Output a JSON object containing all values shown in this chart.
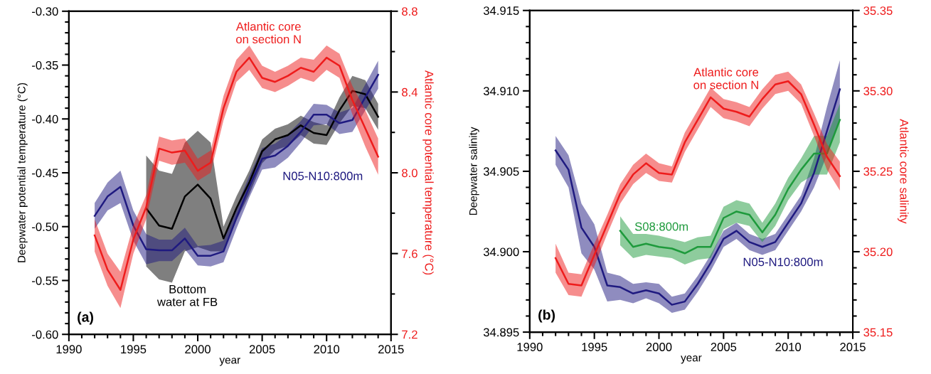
{
  "chart_data": [
    {
      "type": "line",
      "xlabel": "year",
      "ylabel": "Deepwater potential temperature (°C)",
      "y2label": "Atlantic core potential temperature (°C)",
      "xlim": [
        1990,
        2015
      ],
      "xticks": [
        1990,
        {
          "value": 1991,
          "label": null
        },
        {
          "value": 1992,
          "label": null
        },
        {
          "value": 1993,
          "label": null
        },
        {
          "value": 1994,
          "label": null
        },
        1995,
        {
          "value": 1996,
          "label": null
        },
        {
          "value": 1997,
          "label": null
        },
        {
          "value": 1998,
          "label": null
        },
        {
          "value": 1999,
          "label": null
        },
        2000,
        {
          "value": 2001,
          "label": null
        },
        {
          "value": 2002,
          "label": null
        },
        {
          "value": 2003,
          "label": null
        },
        {
          "value": 2004,
          "label": null
        },
        2005,
        {
          "value": 2006,
          "label": null
        },
        {
          "value": 2007,
          "label": null
        },
        {
          "value": 2008,
          "label": null
        },
        {
          "value": 2009,
          "label": null
        },
        2010,
        {
          "value": 2011,
          "label": null
        },
        {
          "value": 2012,
          "label": null
        },
        {
          "value": 2013,
          "label": null
        },
        {
          "value": 2014,
          "label": null
        },
        2015
      ],
      "ylim": [
        -0.6,
        -0.3
      ],
      "yticks": [
        {
          "value": -0.6,
          "label": "-0.60"
        },
        {
          "value": -0.59,
          "label": null
        },
        {
          "value": -0.58,
          "label": null
        },
        {
          "value": -0.57,
          "label": null
        },
        {
          "value": -0.56,
          "label": null
        },
        {
          "value": -0.55,
          "label": "-0.55"
        },
        {
          "value": -0.54,
          "label": null
        },
        {
          "value": -0.53,
          "label": null
        },
        {
          "value": -0.52,
          "label": null
        },
        {
          "value": -0.51,
          "label": null
        },
        {
          "value": -0.5,
          "label": "-0.50"
        },
        {
          "value": -0.49,
          "label": null
        },
        {
          "value": -0.48,
          "label": null
        },
        {
          "value": -0.47,
          "label": null
        },
        {
          "value": -0.46,
          "label": null
        },
        {
          "value": -0.45,
          "label": "-0.45"
        },
        {
          "value": -0.44,
          "label": null
        },
        {
          "value": -0.43,
          "label": null
        },
        {
          "value": -0.42,
          "label": null
        },
        {
          "value": -0.41,
          "label": null
        },
        {
          "value": -0.4,
          "label": "-0.40"
        },
        {
          "value": -0.39,
          "label": null
        },
        {
          "value": -0.38,
          "label": null
        },
        {
          "value": -0.37,
          "label": null
        },
        {
          "value": -0.36,
          "label": null
        },
        {
          "value": -0.35,
          "label": "-0.35"
        },
        {
          "value": -0.34,
          "label": null
        },
        {
          "value": -0.33,
          "label": null
        },
        {
          "value": -0.32,
          "label": null
        },
        {
          "value": -0.31,
          "label": null
        },
        {
          "value": -0.3,
          "label": "-0.30"
        }
      ],
      "y2lim": [
        7.2,
        8.8
      ],
      "y2ticks": [
        7.2,
        {
          "value": 7.4,
          "label": null
        },
        7.6,
        {
          "value": 7.8,
          "label": null
        },
        {
          "value": 8.0,
          "label": "8.0"
        },
        {
          "value": 8.2,
          "label": null
        },
        8.4,
        {
          "value": 8.6,
          "label": null
        },
        8.8
      ],
      "series": [
        {
          "name": "Bottom\nwater at FB",
          "color": "#000000",
          "x": [
            1996,
            1997,
            1998,
            1999,
            2000,
            2001,
            2002,
            2003,
            2004,
            2005,
            2006,
            2007,
            2008,
            2009,
            2010,
            2011,
            2012,
            2013,
            2014
          ],
          "values": [
            -0.483,
            -0.499,
            -0.502,
            -0.472,
            -0.461,
            -0.474,
            -0.511,
            -0.483,
            -0.459,
            -0.43,
            -0.419,
            -0.415,
            -0.406,
            -0.413,
            -0.415,
            -0.392,
            -0.374,
            -0.377,
            -0.398
          ],
          "lower": [
            -0.537,
            -0.549,
            -0.552,
            -0.523,
            -0.519,
            -0.523,
            -0.523,
            -0.494,
            -0.47,
            -0.441,
            -0.429,
            -0.425,
            -0.415,
            -0.423,
            -0.424,
            -0.404,
            -0.388,
            -0.39,
            -0.41
          ],
          "upper": [
            -0.434,
            -0.448,
            -0.451,
            -0.422,
            -0.411,
            -0.422,
            -0.5,
            -0.472,
            -0.448,
            -0.419,
            -0.409,
            -0.405,
            -0.397,
            -0.403,
            -0.406,
            -0.38,
            -0.36,
            -0.364,
            -0.386
          ]
        },
        {
          "name": "N05-N10:800m",
          "color": "#1f1a80",
          "x": [
            1992,
            1993,
            1994,
            1995,
            1996,
            1997,
            1998,
            1999,
            2000,
            2001,
            2002,
            2003,
            2004,
            2005,
            2006,
            2007,
            2008,
            2009,
            2010,
            2011,
            2012,
            2013,
            2014
          ],
          "values": [
            -0.49,
            -0.472,
            -0.463,
            -0.499,
            -0.521,
            -0.522,
            -0.522,
            -0.511,
            -0.527,
            -0.527,
            -0.523,
            -0.492,
            -0.463,
            -0.437,
            -0.434,
            -0.425,
            -0.412,
            -0.396,
            -0.396,
            -0.404,
            -0.401,
            -0.38,
            -0.359
          ],
          "lower": [
            -0.502,
            -0.485,
            -0.478,
            -0.513,
            -0.535,
            -0.532,
            -0.532,
            -0.521,
            -0.536,
            -0.537,
            -0.533,
            -0.502,
            -0.473,
            -0.447,
            -0.445,
            -0.436,
            -0.422,
            -0.406,
            -0.405,
            -0.414,
            -0.412,
            -0.392,
            -0.372
          ],
          "upper": [
            -0.478,
            -0.459,
            -0.448,
            -0.485,
            -0.507,
            -0.512,
            -0.512,
            -0.501,
            -0.518,
            -0.517,
            -0.513,
            -0.482,
            -0.453,
            -0.427,
            -0.423,
            -0.414,
            -0.402,
            -0.386,
            -0.387,
            -0.394,
            -0.39,
            -0.368,
            -0.346
          ]
        },
        {
          "name": "Atlantic core\non section N",
          "color": "#ee1c1c",
          "axis": "y2",
          "x": [
            1992,
            1993,
            1994,
            1995,
            1996,
            1997,
            1998,
            1999,
            2000,
            2001,
            2002,
            2003,
            2004,
            2005,
            2006,
            2007,
            2008,
            2009,
            2010,
            2011,
            2012,
            2013,
            2014
          ],
          "values": [
            7.69,
            7.52,
            7.42,
            7.67,
            7.83,
            8.12,
            8.1,
            8.11,
            8.01,
            8.05,
            8.32,
            8.5,
            8.57,
            8.47,
            8.45,
            8.48,
            8.52,
            8.5,
            8.57,
            8.53,
            8.36,
            8.22,
            8.08
          ],
          "lower": [
            7.61,
            7.44,
            7.33,
            7.6,
            7.77,
            8.06,
            8.04,
            8.05,
            7.96,
            8.0,
            8.26,
            8.45,
            8.51,
            8.42,
            8.4,
            8.43,
            8.47,
            8.45,
            8.51,
            8.47,
            8.29,
            8.13,
            7.99
          ],
          "upper": [
            7.77,
            7.6,
            7.51,
            7.74,
            7.89,
            8.18,
            8.16,
            8.17,
            8.07,
            8.11,
            8.38,
            8.56,
            8.63,
            8.53,
            8.5,
            8.53,
            8.57,
            8.56,
            8.63,
            8.59,
            8.43,
            8.31,
            8.17
          ]
        }
      ],
      "annotations": [
        "(a)"
      ]
    },
    {
      "type": "line",
      "xlabel": "year",
      "ylabel": "Deepwater salinity",
      "y2label": "Atlantic core salinity",
      "xlim": [
        1990,
        2015
      ],
      "xticks": [
        1990,
        {
          "value": 1991,
          "label": null
        },
        {
          "value": 1992,
          "label": null
        },
        {
          "value": 1993,
          "label": null
        },
        {
          "value": 1994,
          "label": null
        },
        1995,
        {
          "value": 1996,
          "label": null
        },
        {
          "value": 1997,
          "label": null
        },
        {
          "value": 1998,
          "label": null
        },
        {
          "value": 1999,
          "label": null
        },
        2000,
        {
          "value": 2001,
          "label": null
        },
        {
          "value": 2002,
          "label": null
        },
        {
          "value": 2003,
          "label": null
        },
        {
          "value": 2004,
          "label": null
        },
        2005,
        {
          "value": 2006,
          "label": null
        },
        {
          "value": 2007,
          "label": null
        },
        {
          "value": 2008,
          "label": null
        },
        {
          "value": 2009,
          "label": null
        },
        2010,
        {
          "value": 2011,
          "label": null
        },
        {
          "value": 2012,
          "label": null
        },
        {
          "value": 2013,
          "label": null
        },
        {
          "value": 2014,
          "label": null
        },
        2015
      ],
      "ylim": [
        34.895,
        34.915
      ],
      "yticks": [
        {
          "value": 34.895,
          "label": "34.895"
        },
        {
          "value": 34.896,
          "label": null
        },
        {
          "value": 34.897,
          "label": null
        },
        {
          "value": 34.898,
          "label": null
        },
        {
          "value": 34.899,
          "label": null
        },
        {
          "value": 34.9,
          "label": "34.900"
        },
        {
          "value": 34.901,
          "label": null
        },
        {
          "value": 34.902,
          "label": null
        },
        {
          "value": 34.903,
          "label": null
        },
        {
          "value": 34.904,
          "label": null
        },
        {
          "value": 34.905,
          "label": "34.905"
        },
        {
          "value": 34.906,
          "label": null
        },
        {
          "value": 34.907,
          "label": null
        },
        {
          "value": 34.908,
          "label": null
        },
        {
          "value": 34.909,
          "label": null
        },
        {
          "value": 34.91,
          "label": "34.910"
        },
        {
          "value": 34.911,
          "label": null
        },
        {
          "value": 34.912,
          "label": null
        },
        {
          "value": 34.913,
          "label": null
        },
        {
          "value": 34.914,
          "label": null
        },
        {
          "value": 34.915,
          "label": "34.915"
        }
      ],
      "y2lim": [
        35.15,
        35.35
      ],
      "y2ticks": [
        {
          "value": 35.15,
          "label": "35.15"
        },
        {
          "value": 35.16,
          "label": null
        },
        {
          "value": 35.17,
          "label": null
        },
        {
          "value": 35.18,
          "label": null
        },
        {
          "value": 35.19,
          "label": null
        },
        {
          "value": 35.2,
          "label": "35.20"
        },
        {
          "value": 35.21,
          "label": null
        },
        {
          "value": 35.22,
          "label": null
        },
        {
          "value": 35.23,
          "label": null
        },
        {
          "value": 35.24,
          "label": null
        },
        {
          "value": 35.25,
          "label": "35.25"
        },
        {
          "value": 35.26,
          "label": null
        },
        {
          "value": 35.27,
          "label": null
        },
        {
          "value": 35.28,
          "label": null
        },
        {
          "value": 35.29,
          "label": null
        },
        {
          "value": 35.3,
          "label": "35.30"
        },
        {
          "value": 35.31,
          "label": null
        },
        {
          "value": 35.32,
          "label": null
        },
        {
          "value": 35.33,
          "label": null
        },
        {
          "value": 35.34,
          "label": null
        },
        {
          "value": 35.35,
          "label": "35.35"
        }
      ],
      "series": [
        {
          "name": "N05-N10:800m",
          "color": "#1f1a80",
          "x": [
            1992,
            1993,
            1994,
            1995,
            1996,
            1997,
            1998,
            1999,
            2000,
            2001,
            2002,
            2003,
            2004,
            2005,
            2006,
            2007,
            2008,
            2009,
            2010,
            2011,
            2012,
            2013,
            2014
          ],
          "values": [
            34.9063,
            34.9051,
            34.9015,
            34.9003,
            34.8979,
            34.8978,
            34.8974,
            34.8976,
            34.8974,
            34.8967,
            34.8969,
            34.898,
            34.8993,
            34.9008,
            34.9013,
            34.9006,
            34.9003,
            34.9006,
            34.9018,
            34.903,
            34.9049,
            34.9075,
            34.9101
          ],
          "lower": [
            34.9054,
            34.904,
            34.8999,
            34.8989,
            34.8969,
            34.897,
            34.8968,
            34.8971,
            34.8968,
            34.8962,
            34.8964,
            34.8975,
            34.8988,
            34.9003,
            34.9008,
            34.9001,
            34.8998,
            34.9001,
            34.9013,
            34.9025,
            34.904,
            34.906,
            34.9083
          ],
          "upper": [
            34.9072,
            34.906,
            34.903,
            34.9017,
            34.8987,
            34.8985,
            34.898,
            34.8981,
            34.898,
            34.8972,
            34.8974,
            34.8985,
            34.8998,
            34.9013,
            34.9018,
            34.9011,
            34.9008,
            34.9011,
            34.9023,
            34.9035,
            34.9058,
            34.909,
            34.9119
          ]
        },
        {
          "name": "S08:800m",
          "color": "#1e9a3c",
          "x": [
            1997,
            1998,
            1999,
            2000,
            2001,
            2002,
            2003,
            2004,
            2005,
            2006,
            2007,
            2008,
            2009,
            2010,
            2011,
            2012,
            2013,
            2014
          ],
          "values": [
            34.9013,
            34.9003,
            34.9005,
            34.9003,
            34.9002,
            34.8999,
            34.9003,
            34.9003,
            34.9021,
            34.9025,
            34.9023,
            34.9012,
            34.9023,
            34.9039,
            34.9051,
            34.9061,
            34.9061,
            34.9082
          ],
          "lower": [
            34.9004,
            34.8996,
            34.8998,
            34.8997,
            34.8996,
            34.8992,
            34.8995,
            34.8996,
            34.9014,
            34.9018,
            34.9016,
            34.9006,
            34.9016,
            34.9032,
            34.9043,
            34.9048,
            34.9048,
            34.9068
          ],
          "upper": [
            34.9022,
            34.9011,
            34.9011,
            34.901,
            34.9008,
            34.9006,
            34.9009,
            34.901,
            34.9028,
            34.9032,
            34.903,
            34.9018,
            34.903,
            34.9046,
            34.9058,
            34.9072,
            34.9072,
            34.9092
          ]
        },
        {
          "name": "Atlantic core\non section N",
          "color": "#ee1c1c",
          "axis": "y2",
          "x": [
            1992,
            1993,
            1994,
            1995,
            1996,
            1997,
            1998,
            1999,
            2000,
            2001,
            2002,
            2003,
            2004,
            2005,
            2006,
            2007,
            2008,
            2009,
            2010,
            2011,
            2012,
            2013,
            2014
          ],
          "values": [
            35.196,
            35.18,
            35.179,
            35.198,
            35.217,
            35.236,
            35.248,
            35.255,
            35.249,
            35.248,
            35.268,
            35.282,
            35.296,
            35.289,
            35.287,
            35.284,
            35.295,
            35.304,
            35.306,
            35.298,
            35.279,
            35.259,
            35.247
          ],
          "lower": [
            35.187,
            35.173,
            35.172,
            35.191,
            35.211,
            35.23,
            35.242,
            35.249,
            35.244,
            35.243,
            35.262,
            35.276,
            35.29,
            35.283,
            35.281,
            35.278,
            35.289,
            35.298,
            35.3,
            35.292,
            35.272,
            35.251,
            35.238
          ],
          "upper": [
            35.205,
            35.187,
            35.186,
            35.205,
            35.223,
            35.242,
            35.254,
            35.261,
            35.255,
            35.253,
            35.274,
            35.288,
            35.302,
            35.295,
            35.293,
            35.29,
            35.301,
            35.31,
            35.312,
            35.304,
            35.286,
            35.267,
            35.256
          ]
        }
      ],
      "annotations": [
        "(b)"
      ]
    }
  ]
}
